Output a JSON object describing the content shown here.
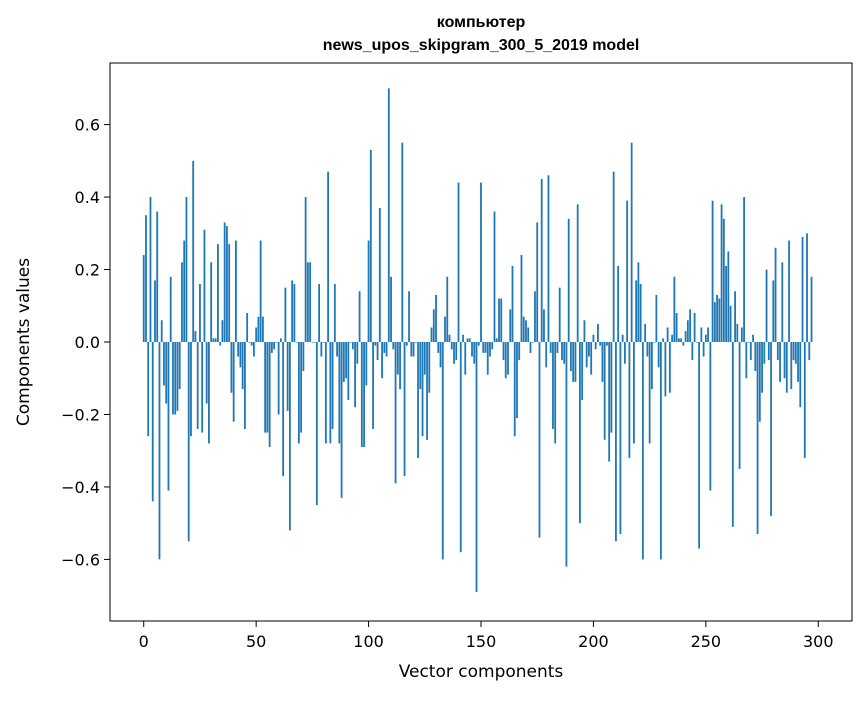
{
  "chart_data": {
    "type": "bar",
    "title": "компьютер\nnews_upos_skipgram_300_5_2019 model",
    "title_lines": [
      "компьютер",
      "news_upos_skipgram_300_5_2019 model"
    ],
    "xlabel": "Vector components",
    "ylabel": "Components values",
    "xlim": [
      -15,
      315
    ],
    "ylim": [
      -0.77,
      0.77
    ],
    "xticks": [
      0,
      50,
      100,
      150,
      200,
      250,
      300
    ],
    "xtick_labels": [
      "0",
      "50",
      "100",
      "150",
      "200",
      "250",
      "300"
    ],
    "yticks": [
      -0.6,
      -0.4,
      -0.2,
      0.0,
      0.2,
      0.4,
      0.6
    ],
    "ytick_labels": [
      "−0.6",
      "−0.4",
      "−0.2",
      "0.0",
      "0.2",
      "0.4",
      "0.6"
    ],
    "grid": false,
    "bar_color": "#1f77b4",
    "series": [
      {
        "values": [
          0.24,
          0.35,
          -0.26,
          0.4,
          -0.44,
          0.17,
          0.36,
          -0.6,
          0.06,
          -0.12,
          -0.17,
          -0.41,
          0.18,
          -0.2,
          -0.2,
          -0.19,
          -0.13,
          0.22,
          0.28,
          0.4,
          -0.55,
          -0.26,
          0.5,
          0.03,
          -0.24,
          0.16,
          -0.25,
          0.31,
          -0.17,
          -0.28,
          0.22,
          0.01,
          0.01,
          0.27,
          -0.01,
          0.06,
          0.33,
          0.32,
          0.27,
          -0.14,
          -0.22,
          0.28,
          -0.04,
          -0.07,
          -0.13,
          -0.24,
          0.08,
          0.0,
          -0.01,
          -0.04,
          0.04,
          0.07,
          0.28,
          0.07,
          -0.25,
          -0.25,
          -0.29,
          -0.03,
          -0.02,
          0.0,
          -0.2,
          0.01,
          -0.37,
          0.15,
          -0.19,
          -0.52,
          0.17,
          0.16,
          0.0,
          -0.28,
          -0.25,
          -0.08,
          0.4,
          0.22,
          0.22,
          0.0,
          0.0,
          -0.45,
          0.16,
          -0.04,
          0.0,
          -0.28,
          0.47,
          -0.28,
          -0.24,
          0.16,
          -0.04,
          -0.28,
          -0.43,
          -0.11,
          -0.1,
          -0.16,
          0.0,
          -0.02,
          -0.18,
          -0.06,
          0.14,
          -0.29,
          -0.29,
          -0.12,
          0.28,
          0.53,
          -0.24,
          -0.01,
          -0.05,
          0.37,
          -0.1,
          -0.03,
          -0.04,
          0.7,
          0.18,
          -0.02,
          -0.39,
          -0.09,
          -0.13,
          0.55,
          -0.37,
          -0.01,
          0.14,
          -0.04,
          -0.04,
          0.0,
          -0.32,
          -0.13,
          -0.26,
          -0.09,
          -0.27,
          -0.14,
          0.04,
          0.09,
          0.13,
          -0.03,
          -0.07,
          -0.6,
          0.07,
          0.18,
          0.02,
          -0.02,
          -0.06,
          -0.05,
          0.44,
          -0.58,
          0.02,
          -0.09,
          0.01,
          0.01,
          -0.04,
          -0.06,
          -0.69,
          -0.01,
          0.44,
          -0.03,
          -0.03,
          -0.09,
          -0.04,
          -0.02,
          0.36,
          0.01,
          0.12,
          0.12,
          -0.05,
          -0.1,
          -0.09,
          0.09,
          0.21,
          -0.26,
          -0.21,
          -0.05,
          0.24,
          0.07,
          0.06,
          0.04,
          -0.03,
          0.0,
          0.14,
          0.33,
          -0.54,
          0.45,
          0.09,
          -0.07,
          0.46,
          -0.03,
          -0.24,
          -0.28,
          -0.03,
          0.15,
          -0.05,
          -0.06,
          -0.62,
          0.34,
          -0.08,
          -0.11,
          -0.11,
          0.38,
          -0.5,
          -0.16,
          0.06,
          -0.07,
          -0.04,
          -0.09,
          0.02,
          -0.02,
          0.05,
          -0.01,
          -0.11,
          -0.27,
          -0.01,
          -0.33,
          -0.25,
          0.47,
          -0.55,
          0.21,
          -0.53,
          0.02,
          -0.06,
          0.39,
          -0.32,
          0.55,
          -0.28,
          0.17,
          0.22,
          0.16,
          -0.6,
          0.05,
          -0.04,
          -0.28,
          -0.13,
          0.0,
          0.13,
          -0.07,
          -0.6,
          0.01,
          -0.15,
          0.04,
          -0.14,
          0.02,
          0.18,
          0.08,
          0.01,
          0.01,
          -0.01,
          0.03,
          0.06,
          0.09,
          -0.05,
          0.08,
          0.0,
          -0.57,
          0.04,
          -0.04,
          0.02,
          0.04,
          -0.41,
          0.39,
          0.11,
          0.13,
          0.12,
          0.38,
          0.34,
          0.21,
          0.25,
          0.1,
          -0.51,
          0.14,
          0.05,
          -0.35,
          0.04,
          0.4,
          -0.1,
          0.0,
          -0.05,
          0.02,
          -0.08,
          -0.53,
          -0.22,
          -0.14,
          -0.06,
          0.2,
          -0.05,
          -0.48,
          0.17,
          0.26,
          -0.05,
          -0.11,
          0.22,
          -0.1,
          -0.14,
          0.28,
          -0.13,
          -0.05,
          -0.06,
          -0.11,
          -0.18,
          0.29,
          -0.32,
          0.3,
          -0.05,
          0.18
        ]
      }
    ]
  }
}
